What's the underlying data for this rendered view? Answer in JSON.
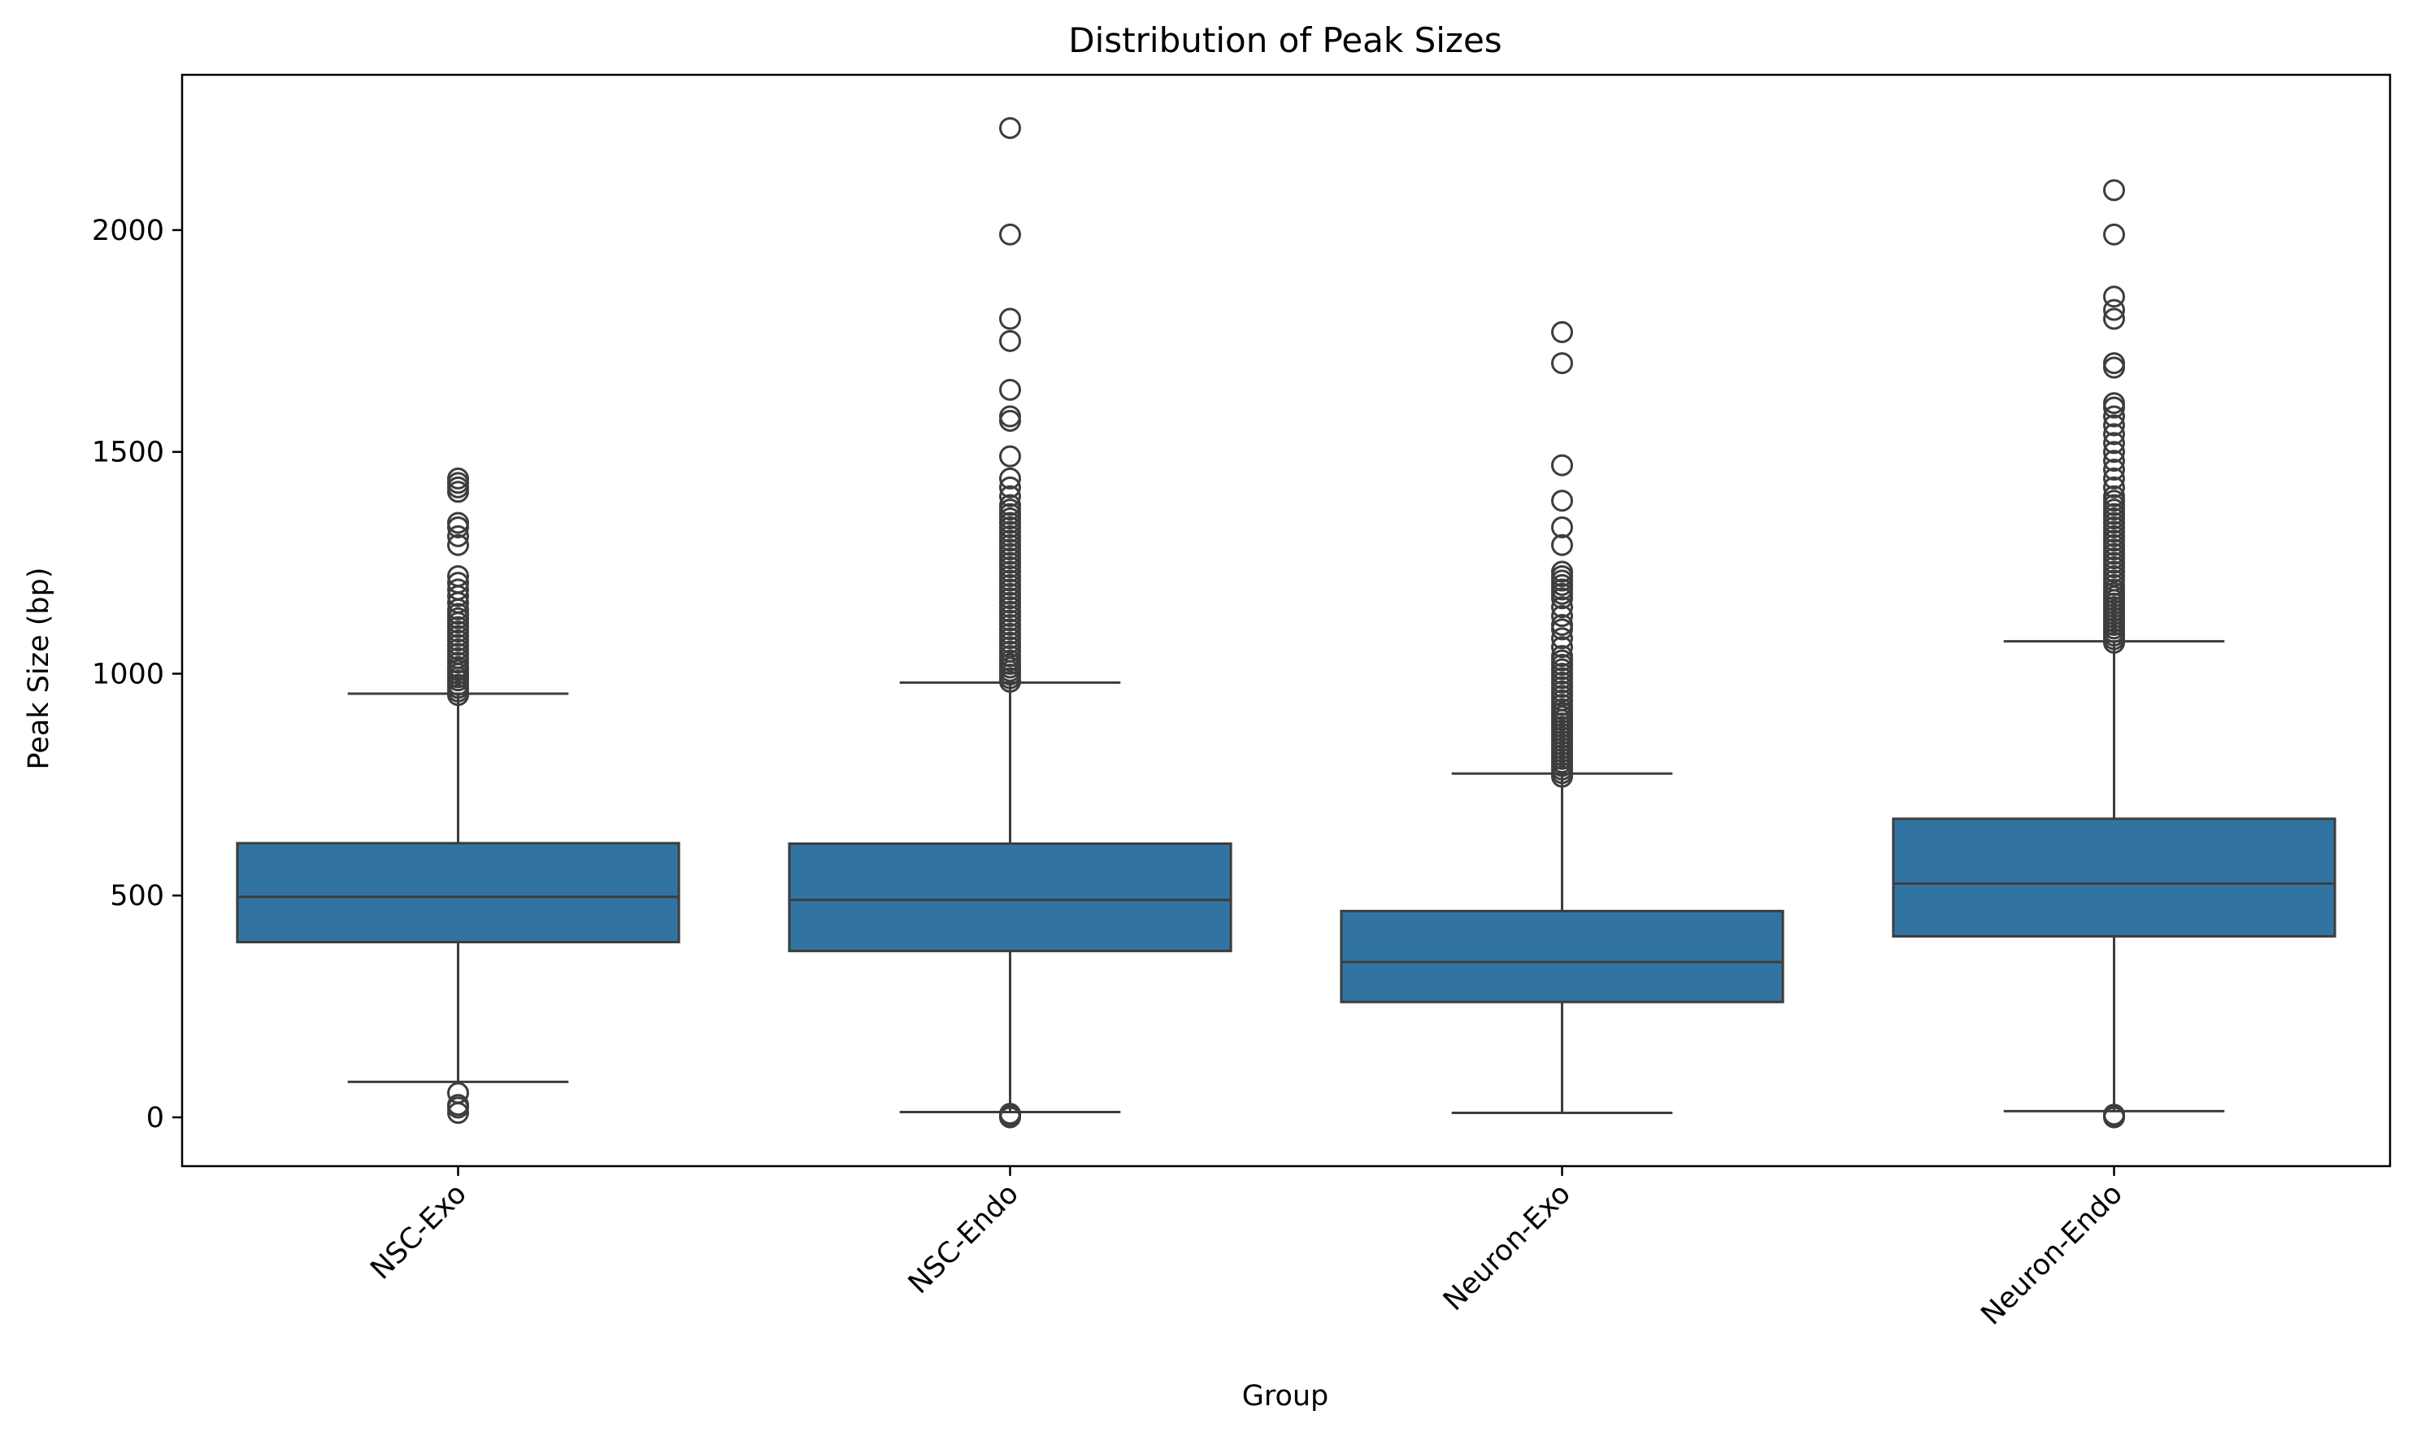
{
  "chart_data": {
    "type": "boxplot",
    "title": "Distribution of Peak Sizes",
    "xlabel": "Group",
    "ylabel": "Peak Size (bp)",
    "ylim": [
      -110,
      2350
    ],
    "yticks": [
      0,
      500,
      1000,
      1500,
      2000
    ],
    "grid": false,
    "legend": "none",
    "categories": [
      "NSC-Exo",
      "NSC-Endo",
      "Neuron-Exo",
      "Neuron-Endo"
    ],
    "box_color": "#3274a1",
    "line_color": "#3d3d3d",
    "boxes": [
      {
        "name": "NSC-Exo",
        "whisker_low": 80,
        "q1": 395,
        "median": 497,
        "q3": 618,
        "whisker_high": 955,
        "outliers": [
          10,
          22,
          28,
          55,
          952,
          960,
          968,
          975,
          985,
          992,
          1000,
          1008,
          1015,
          1025,
          1035,
          1045,
          1055,
          1065,
          1075,
          1085,
          1095,
          1105,
          1115,
          1125,
          1135,
          1145,
          1160,
          1175,
          1190,
          1205,
          1220,
          1290,
          1310,
          1330,
          1340,
          1410,
          1420,
          1430,
          1440
        ]
      },
      {
        "name": "NSC-Endo",
        "whisker_low": 12,
        "q1": 375,
        "median": 490,
        "q3": 617,
        "whisker_high": 980,
        "outliers": [
          0,
          2,
          5,
          8,
          982,
          990,
          998,
          1006,
          1014,
          1022,
          1030,
          1040,
          1050,
          1060,
          1070,
          1080,
          1090,
          1100,
          1110,
          1120,
          1130,
          1140,
          1150,
          1160,
          1170,
          1180,
          1190,
          1200,
          1210,
          1220,
          1230,
          1240,
          1250,
          1260,
          1270,
          1280,
          1290,
          1300,
          1310,
          1320,
          1330,
          1340,
          1350,
          1360,
          1370,
          1380,
          1400,
          1420,
          1440,
          1490,
          1570,
          1580,
          1640,
          1750,
          1800,
          1990,
          2230
        ]
      },
      {
        "name": "Neuron-Exo",
        "whisker_low": 10,
        "q1": 260,
        "median": 350,
        "q3": 465,
        "whisker_high": 775,
        "outliers": [
          768,
          776,
          784,
          792,
          800,
          808,
          816,
          824,
          832,
          840,
          848,
          856,
          864,
          872,
          880,
          888,
          896,
          904,
          912,
          920,
          930,
          940,
          950,
          960,
          970,
          980,
          990,
          1000,
          1010,
          1020,
          1030,
          1040,
          1060,
          1080,
          1100,
          1110,
          1130,
          1150,
          1170,
          1180,
          1190,
          1200,
          1210,
          1220,
          1230,
          1290,
          1330,
          1390,
          1470,
          1700,
          1770
        ]
      },
      {
        "name": "Neuron-Endo",
        "whisker_low": 14,
        "q1": 408,
        "median": 527,
        "q3": 673,
        "whisker_high": 1073,
        "outliers": [
          0,
          3,
          6,
          1070,
          1078,
          1086,
          1094,
          1102,
          1110,
          1118,
          1126,
          1134,
          1142,
          1150,
          1158,
          1166,
          1174,
          1182,
          1190,
          1200,
          1210,
          1220,
          1230,
          1240,
          1250,
          1260,
          1270,
          1280,
          1290,
          1300,
          1310,
          1320,
          1330,
          1340,
          1350,
          1360,
          1370,
          1380,
          1390,
          1400,
          1420,
          1440,
          1460,
          1480,
          1500,
          1520,
          1540,
          1560,
          1580,
          1600,
          1610,
          1690,
          1700,
          1800,
          1820,
          1850,
          1990,
          2090
        ]
      }
    ]
  }
}
